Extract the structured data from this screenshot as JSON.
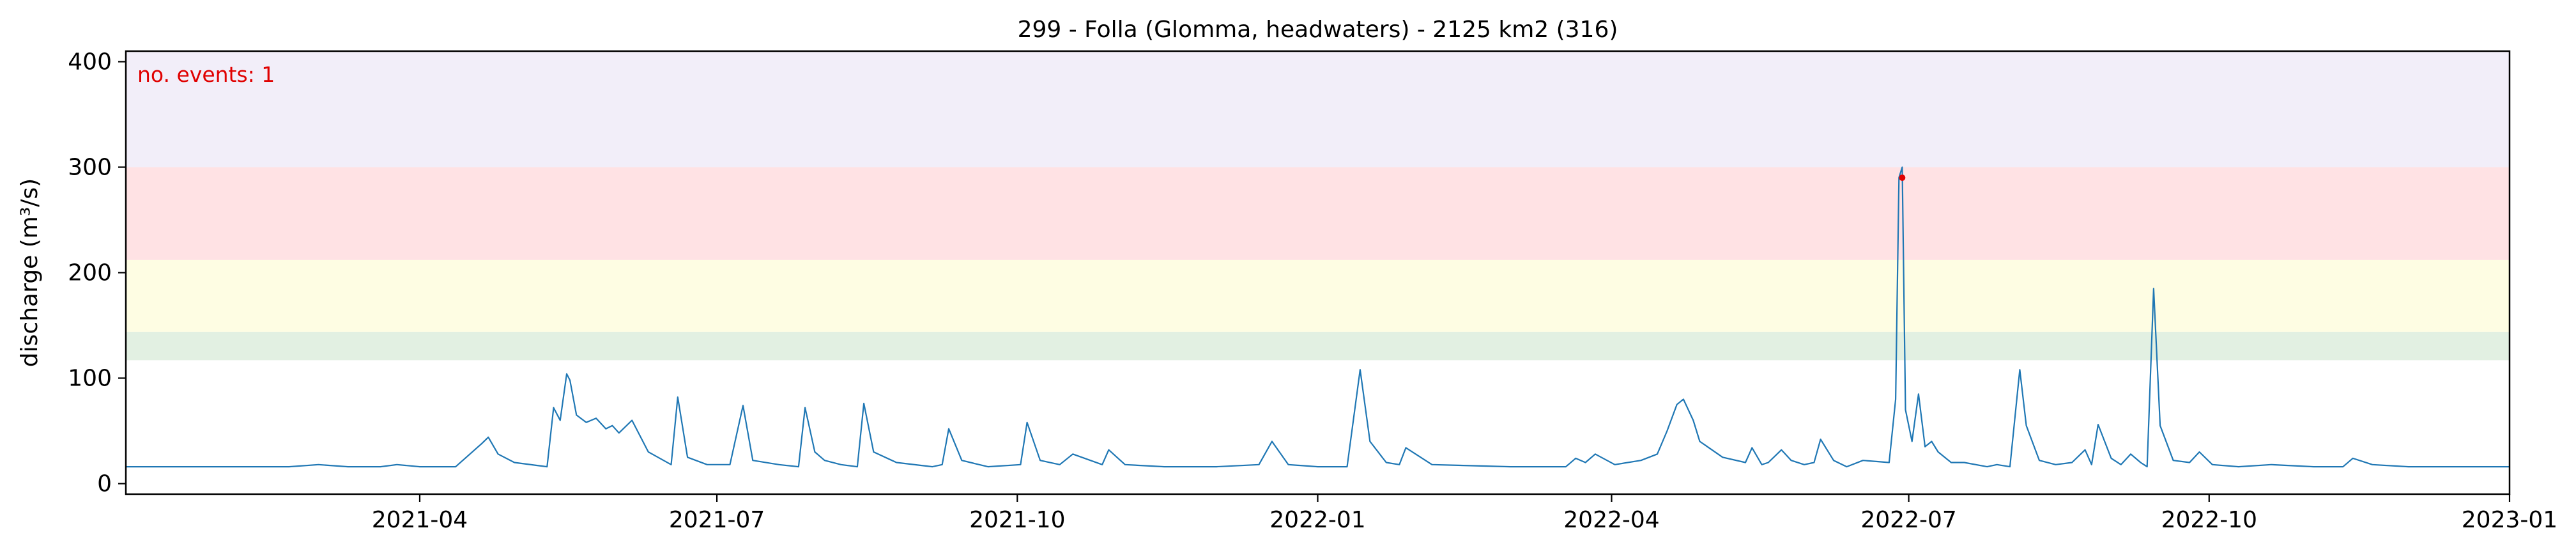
{
  "chart_data": {
    "type": "line",
    "title": "299 - Folla (Glomma, headwaters) - 2125 km2 (316)",
    "xlabel": "",
    "ylabel": "discharge (m³/s)",
    "annotation": "no. events: 1",
    "xlim": [
      "2021-01-01",
      "2023-01-01"
    ],
    "ylim": [
      -10,
      410
    ],
    "x_ticks": [
      "2021-04",
      "2021-07",
      "2021-10",
      "2022-01",
      "2022-04",
      "2022-07",
      "2022-10",
      "2023-01"
    ],
    "y_ticks": [
      0,
      100,
      200,
      300,
      400
    ],
    "grid": false,
    "threshold_bands": [
      {
        "from": 117,
        "to": 144,
        "color": "#e2f0e2"
      },
      {
        "from": 144,
        "to": 212,
        "color": "#fefde3"
      },
      {
        "from": 212,
        "to": 300,
        "color": "#ffe2e4"
      },
      {
        "from": 300,
        "to": 410,
        "color": "#f2eef9"
      }
    ],
    "series": [
      {
        "color": "#1f77b4",
        "x": [
          "2021-01-01",
          "2021-02-20",
          "2021-03-01",
          "2021-03-10",
          "2021-03-20",
          "2021-03-25",
          "2021-04-01",
          "2021-04-12",
          "2021-04-20",
          "2021-04-22",
          "2021-04-25",
          "2021-04-30",
          "2021-05-10",
          "2021-05-12",
          "2021-05-14",
          "2021-05-16",
          "2021-05-17",
          "2021-05-19",
          "2021-05-22",
          "2021-05-25",
          "2021-05-28",
          "2021-05-30",
          "2021-06-01",
          "2021-06-05",
          "2021-06-10",
          "2021-06-17",
          "2021-06-19",
          "2021-06-22",
          "2021-06-28",
          "2021-07-05",
          "2021-07-09",
          "2021-07-12",
          "2021-07-20",
          "2021-07-26",
          "2021-07-28",
          "2021-07-31",
          "2021-08-03",
          "2021-08-08",
          "2021-08-13",
          "2021-08-15",
          "2021-08-18",
          "2021-08-25",
          "2021-09-05",
          "2021-09-08",
          "2021-09-10",
          "2021-09-14",
          "2021-09-22",
          "2021-10-02",
          "2021-10-04",
          "2021-10-08",
          "2021-10-14",
          "2021-10-18",
          "2021-10-27",
          "2021-10-29",
          "2021-11-03",
          "2021-11-15",
          "2021-12-01",
          "2021-12-14",
          "2021-12-18",
          "2021-12-23",
          "2022-01-01",
          "2022-01-10",
          "2022-01-14",
          "2022-01-17",
          "2022-01-22",
          "2022-01-26",
          "2022-01-28",
          "2022-02-05",
          "2022-03-01",
          "2022-03-18",
          "2022-03-21",
          "2022-03-24",
          "2022-03-27",
          "2022-04-02",
          "2022-04-10",
          "2022-04-15",
          "2022-04-18",
          "2022-04-21",
          "2022-04-23",
          "2022-04-26",
          "2022-04-28",
          "2022-05-05",
          "2022-05-12",
          "2022-05-14",
          "2022-05-17",
          "2022-05-19",
          "2022-05-23",
          "2022-05-26",
          "2022-05-30",
          "2022-06-02",
          "2022-06-04",
          "2022-06-08",
          "2022-06-12",
          "2022-06-17",
          "2022-06-25",
          "2022-06-27",
          "2022-06-28",
          "2022-06-29",
          "2022-06-30",
          "2022-07-02",
          "2022-07-04",
          "2022-07-06",
          "2022-07-08",
          "2022-07-10",
          "2022-07-14",
          "2022-07-18",
          "2022-07-25",
          "2022-07-28",
          "2022-08-01",
          "2022-08-04",
          "2022-08-06",
          "2022-08-10",
          "2022-08-15",
          "2022-08-20",
          "2022-08-24",
          "2022-08-26",
          "2022-08-28",
          "2022-09-01",
          "2022-09-04",
          "2022-09-07",
          "2022-09-10",
          "2022-09-12",
          "2022-09-14",
          "2022-09-16",
          "2022-09-20",
          "2022-09-25",
          "2022-09-28",
          "2022-10-02",
          "2022-10-10",
          "2022-10-20",
          "2022-11-02",
          "2022-11-11",
          "2022-11-14",
          "2022-11-20",
          "2022-12-01",
          "2023-01-01"
        ],
        "y": [
          16,
          16,
          18,
          16,
          16,
          18,
          16,
          16,
          38,
          44,
          28,
          20,
          16,
          72,
          60,
          104,
          98,
          65,
          58,
          62,
          52,
          55,
          48,
          60,
          30,
          18,
          82,
          25,
          18,
          18,
          74,
          22,
          18,
          16,
          72,
          30,
          22,
          18,
          16,
          76,
          30,
          20,
          16,
          18,
          52,
          22,
          16,
          18,
          58,
          22,
          18,
          28,
          18,
          32,
          18,
          16,
          16,
          18,
          40,
          18,
          16,
          16,
          108,
          40,
          20,
          18,
          34,
          18,
          16,
          16,
          24,
          20,
          28,
          18,
          22,
          28,
          50,
          75,
          80,
          60,
          40,
          25,
          20,
          34,
          18,
          20,
          32,
          22,
          18,
          20,
          42,
          22,
          16,
          22,
          20,
          80,
          290,
          300,
          70,
          40,
          85,
          35,
          40,
          30,
          20,
          20,
          16,
          18,
          16,
          108,
          55,
          22,
          18,
          20,
          32,
          18,
          56,
          24,
          18,
          28,
          20,
          16,
          185,
          55,
          22,
          20,
          30,
          18,
          16,
          18,
          16,
          16,
          24,
          18,
          16,
          16
        ]
      }
    ],
    "events": [
      {
        "x": "2022-06-29",
        "y": 290,
        "color": "#e00000"
      }
    ]
  }
}
